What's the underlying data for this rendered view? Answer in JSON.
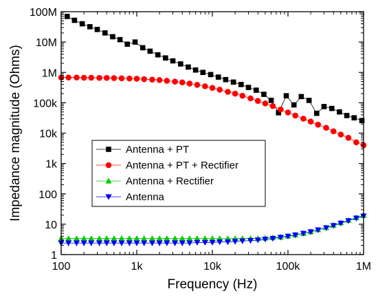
{
  "chart_data": {
    "type": "line",
    "title": "",
    "xlabel": "Frequency (Hz)",
    "ylabel": "Impedance magnitude (Ohms)",
    "xscale": "log",
    "yscale": "log",
    "xlim": [
      100,
      1000000
    ],
    "ylim": [
      1,
      100000000
    ],
    "x_ticks": [
      {
        "value": 100,
        "label": "100"
      },
      {
        "value": 1000,
        "label": "1k"
      },
      {
        "value": 10000,
        "label": "10k"
      },
      {
        "value": 100000,
        "label": "100k"
      },
      {
        "value": 1000000,
        "label": "1M"
      }
    ],
    "y_ticks": [
      {
        "value": 1,
        "label": "1"
      },
      {
        "value": 10,
        "label": "10"
      },
      {
        "value": 100,
        "label": "100"
      },
      {
        "value": 1000,
        "label": "1k"
      },
      {
        "value": 10000,
        "label": "10k"
      },
      {
        "value": 100000,
        "label": "100k"
      },
      {
        "value": 1000000,
        "label": "1M"
      },
      {
        "value": 10000000,
        "label": "10M"
      },
      {
        "value": 100000000,
        "label": "100M"
      }
    ],
    "grid": false,
    "legend": {
      "position": "center-left"
    },
    "series": [
      {
        "name": "Antenna + PT",
        "color": "#000000",
        "marker": "square",
        "x": [
          120,
          150,
          190,
          240,
          300,
          380,
          480,
          600,
          750,
          950,
          1200,
          1500,
          1900,
          2400,
          3000,
          3800,
          4800,
          6000,
          7500,
          9500,
          12000,
          15000,
          19000,
          24000,
          30000,
          38000,
          48000,
          60000,
          75000,
          95000,
          120000,
          150000,
          190000,
          240000,
          300000,
          380000,
          480000,
          600000,
          750000,
          950000
        ],
        "y": [
          70000000,
          52000000,
          40000000,
          32000000,
          26000000,
          20000000,
          15000000,
          12000000,
          8500000,
          10000000,
          6500000,
          5000000,
          3800000,
          3000000,
          2400000,
          1900000,
          1500000,
          1200000,
          1000000,
          850000,
          700000,
          580000,
          480000,
          400000,
          320000,
          260000,
          190000,
          120000,
          47000,
          170000,
          85000,
          160000,
          120000,
          45000,
          75000,
          65000,
          50000,
          38000,
          32000,
          26000
        ]
      },
      {
        "name": "Antenna + PT + Rectifier",
        "color": "#ff0000",
        "marker": "circle",
        "x": [
          100,
          125,
          160,
          200,
          250,
          320,
          400,
          500,
          630,
          800,
          1000,
          1250,
          1600,
          2000,
          2500,
          3200,
          4000,
          5000,
          6300,
          8000,
          10000,
          12500,
          16000,
          20000,
          25000,
          32000,
          40000,
          50000,
          63000,
          80000,
          100000,
          125000,
          160000,
          200000,
          250000,
          320000,
          400000,
          500000,
          630000,
          800000,
          1000000
        ],
        "y": [
          680000,
          680000,
          680000,
          670000,
          670000,
          660000,
          660000,
          650000,
          640000,
          630000,
          620000,
          600000,
          580000,
          560000,
          530000,
          500000,
          470000,
          430000,
          390000,
          350000,
          310000,
          270000,
          230000,
          200000,
          170000,
          140000,
          115000,
          95000,
          78000,
          60000,
          48000,
          38000,
          30000,
          24000,
          19000,
          15000,
          11500,
          9000,
          7000,
          5000,
          4000
        ]
      },
      {
        "name": "Antenna +  Rectifier",
        "color": "#00cc00",
        "marker": "triangle-up",
        "x": [
          100,
          125,
          160,
          200,
          250,
          320,
          400,
          500,
          630,
          800,
          1000,
          1250,
          1600,
          2000,
          2500,
          3200,
          4000,
          5000,
          6300,
          8000,
          10000,
          12500,
          16000,
          20000,
          25000,
          32000,
          40000,
          50000,
          63000,
          80000,
          100000,
          125000,
          160000,
          200000,
          250000,
          320000,
          400000,
          500000,
          630000,
          800000,
          1000000
        ],
        "y": [
          3.4,
          3.4,
          3.4,
          3.4,
          3.4,
          3.4,
          3.4,
          3.4,
          3.4,
          3.4,
          3.4,
          3.4,
          3.4,
          3.4,
          3.4,
          3.4,
          3.4,
          3.4,
          3.4,
          3.4,
          3.4,
          3.4,
          3.4,
          3.4,
          3.4,
          3.4,
          3.4,
          3.5,
          3.6,
          3.8,
          4.1,
          4.5,
          5.0,
          5.7,
          6.6,
          7.8,
          9.3,
          11.2,
          13.5,
          16.5,
          19.5
        ]
      },
      {
        "name": "Antenna",
        "color": "#0000ff",
        "marker": "triangle-down",
        "x": [
          100,
          125,
          160,
          200,
          250,
          320,
          400,
          500,
          630,
          800,
          1000,
          1250,
          1600,
          2000,
          2500,
          3200,
          4000,
          5000,
          6300,
          8000,
          10000,
          12500,
          16000,
          20000,
          25000,
          32000,
          40000,
          50000,
          63000,
          80000,
          100000,
          125000,
          160000,
          200000,
          250000,
          320000,
          400000,
          500000,
          630000,
          800000,
          1000000
        ],
        "y": [
          2.4,
          2.4,
          2.4,
          2.4,
          2.4,
          2.4,
          2.4,
          2.4,
          2.4,
          2.4,
          2.4,
          2.4,
          2.4,
          2.4,
          2.4,
          2.4,
          2.4,
          2.4,
          2.5,
          2.5,
          2.5,
          2.6,
          2.6,
          2.7,
          2.8,
          2.9,
          3.0,
          3.2,
          3.4,
          3.7,
          4.0,
          4.4,
          5.0,
          5.6,
          6.5,
          7.6,
          9.0,
          10.8,
          13.0,
          15.8,
          18.5
        ]
      }
    ]
  }
}
